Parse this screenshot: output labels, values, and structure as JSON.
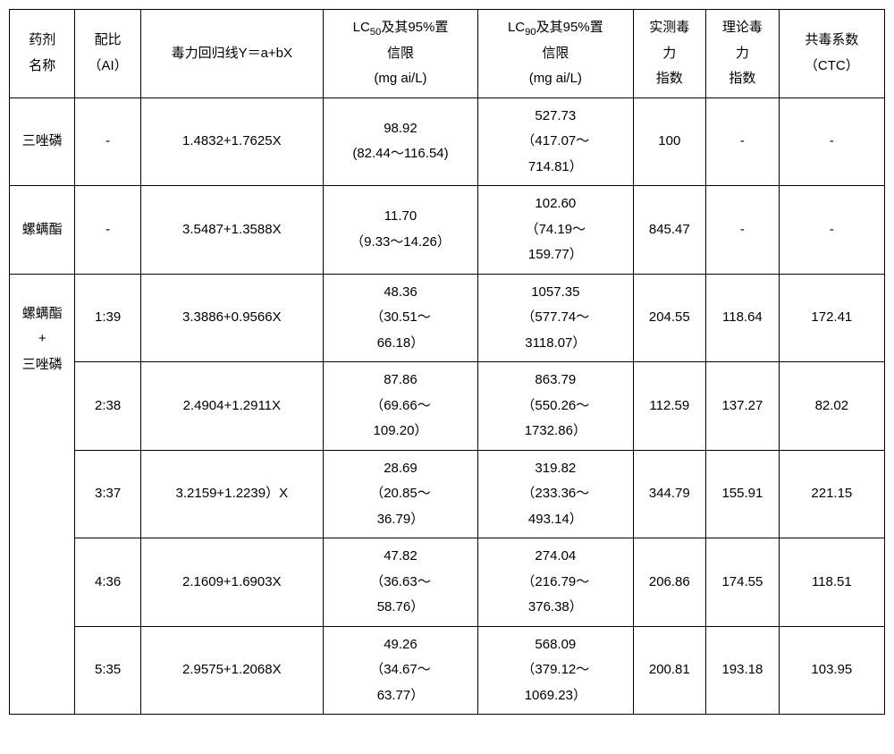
{
  "columns": {
    "c0": "药剂\n名称",
    "c1": "配比\n（AI）",
    "c2": "毒力回归线Y＝a+bX",
    "c3_pre": "LC",
    "c3_sub": "50",
    "c3_post": "及其95%置\n信限\n(mg ai/L)",
    "c4_pre": "LC",
    "c4_sub": "90",
    "c4_post": "及其95%置\n信限\n(mg ai/L)",
    "c5": "实测毒\n力\n指数",
    "c6": "理论毒\n力\n指数",
    "c7": "共毒系数\n（CTC）"
  },
  "widths": {
    "c0": "72px",
    "c1": "72px",
    "c2": "200px",
    "c3": "170px",
    "c4": "170px",
    "c5": "80px",
    "c6": "80px",
    "c7": "116px"
  },
  "rows": [
    {
      "drug": "三唑磷",
      "rowspan": 1,
      "ratio": "-",
      "regression": "1.4832+1.7625X",
      "lc50": "98.92\n(82.44～116.54)",
      "lc90": "527.73\n（417.07～\n714.81）",
      "measured": "100",
      "theoretical": "-",
      "ctc": "-"
    },
    {
      "drug": "螺螨酯",
      "rowspan": 1,
      "ratio": "-",
      "regression": "3.5487+1.3588X",
      "lc50": "11.70\n（9.33～14.26）",
      "lc90": "102.60\n（74.19～\n159.77）",
      "measured": "845.47",
      "theoretical": "-",
      "ctc": "-"
    },
    {
      "drug": "螺螨酯\n+\n三唑磷",
      "rowspan": 5,
      "ratio": "1:39",
      "regression": "3.3886+0.9566X",
      "lc50": "48.36\n（30.51～\n66.18）",
      "lc90": "1057.35\n（577.74～\n3118.07）",
      "measured": "204.55",
      "theoretical": "118.64",
      "ctc": "172.41"
    },
    {
      "drug": null,
      "ratio": "2:38",
      "regression": "2.4904+1.2911X",
      "lc50": "87.86\n（69.66～\n109.20）",
      "lc90": "863.79\n（550.26～\n1732.86）",
      "measured": "112.59",
      "theoretical": "137.27",
      "ctc": "82.02"
    },
    {
      "drug": null,
      "ratio": "3:37",
      "regression": "3.2159+1.2239）X",
      "lc50": "28.69\n（20.85～\n36.79）",
      "lc90": "319.82\n（233.36～\n493.14）",
      "measured": "344.79",
      "theoretical": "155.91",
      "ctc": "221.15"
    },
    {
      "drug": null,
      "ratio": "4:36",
      "regression": "2.1609+1.6903X",
      "lc50": "47.82\n（36.63～\n58.76）",
      "lc90": "274.04\n（216.79～\n376.38）",
      "measured": "206.86",
      "theoretical": "174.55",
      "ctc": "118.51"
    },
    {
      "drug": null,
      "ratio": "5:35",
      "regression": "2.9575+1.2068X",
      "lc50": "49.26\n（34.67～\n63.77）",
      "lc90": "568.09\n（379.12～\n1069.23）",
      "measured": "200.81",
      "theoretical": "193.18",
      "ctc": "103.95"
    }
  ]
}
